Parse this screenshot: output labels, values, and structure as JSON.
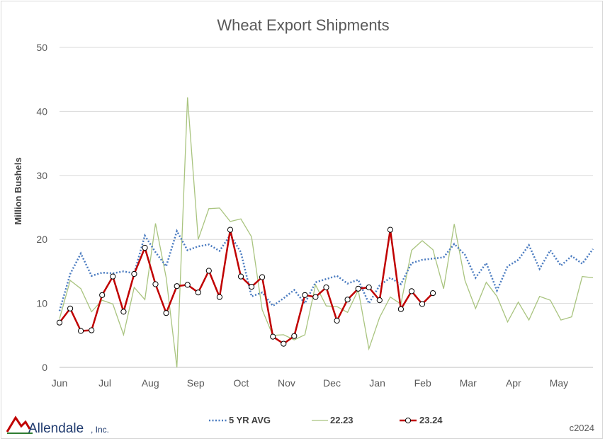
{
  "chart_data": {
    "type": "line",
    "title": "Wheat Export Shipments",
    "ylabel": "Million Bushels",
    "xlabel": "",
    "ylim": [
      0,
      50
    ],
    "yticks": [
      "0",
      "10",
      "20",
      "30",
      "40",
      "50"
    ],
    "month_labels": [
      "Jun",
      "Jul",
      "Aug",
      "Sep",
      "Oct",
      "Nov",
      "Dec",
      "Jan",
      "Feb",
      "Mar",
      "Apr",
      "May"
    ],
    "grid": true,
    "legend_position": "bottom",
    "series": [
      {
        "name": "5 YR AVG",
        "color": "#4a7bc0",
        "style": "dotted",
        "values": [
          8.8,
          14.6,
          17.8,
          14.3,
          14.8,
          14.7,
          15.0,
          14.7,
          20.6,
          18.0,
          15.8,
          21.3,
          18.3,
          18.9,
          19.2,
          18.2,
          20.7,
          18.0,
          11.1,
          11.7,
          9.6,
          10.8,
          12.1,
          10.0,
          13.3,
          13.8,
          14.3,
          13.1,
          13.7,
          10.0,
          12.8,
          14.0,
          13.0,
          16.3,
          16.8,
          17.0,
          17.2,
          19.3,
          17.6,
          14.0,
          16.3,
          12.0,
          15.8,
          16.8,
          19.1,
          15.4,
          18.3,
          15.9,
          17.4,
          16.2,
          18.5
        ]
      },
      {
        "name": "22.23",
        "color": "#a9c47f",
        "style": "solid",
        "values": [
          7.6,
          13.6,
          12.3,
          8.7,
          10.5,
          9.9,
          5.1,
          12.5,
          10.6,
          22.5,
          14.0,
          0.0,
          42.2,
          20.0,
          24.8,
          24.9,
          22.8,
          23.2,
          20.4,
          9.0,
          5.0,
          5.1,
          4.3,
          5.1,
          12.9,
          9.6,
          9.5,
          8.6,
          12.1,
          2.9,
          7.8,
          11.0,
          9.9,
          18.3,
          19.8,
          18.4,
          12.3,
          22.4,
          13.6,
          9.2,
          13.3,
          11.1,
          7.1,
          10.2,
          7.4,
          11.1,
          10.5,
          7.4,
          7.9,
          14.2,
          14.0
        ]
      },
      {
        "name": "23.24",
        "color": "#c00000",
        "style": "solid-markers",
        "values": [
          7.0,
          9.2,
          5.7,
          5.8,
          11.3,
          14.2,
          8.7,
          14.6,
          18.7,
          13.0,
          8.5,
          12.7,
          12.9,
          11.7,
          15.1,
          11.0,
          21.5,
          14.2,
          12.6,
          14.1,
          4.8,
          3.7,
          4.9,
          11.3,
          11.0,
          12.5,
          7.3,
          10.6,
          12.3,
          12.5,
          10.5,
          21.5,
          9.1,
          11.9,
          9.9,
          11.6
        ]
      }
    ]
  },
  "logo": {
    "name": "Allendale",
    "suffix": ", Inc."
  },
  "credit": "c2024",
  "colors": {
    "grid": "#d9d9d9",
    "text": "#595959"
  }
}
